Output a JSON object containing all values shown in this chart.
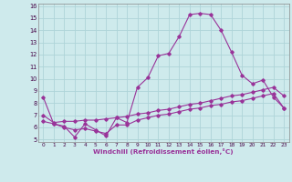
{
  "xlabel": "Windchill (Refroidissement éolien,°C)",
  "bg_color": "#ceeaec",
  "grid_color": "#aed4d8",
  "line_color": "#993399",
  "xlim": [
    -0.5,
    23.5
  ],
  "ylim": [
    4.8,
    16.2
  ],
  "xticks": [
    0,
    1,
    2,
    3,
    4,
    5,
    6,
    7,
    8,
    9,
    10,
    11,
    12,
    13,
    14,
    15,
    16,
    17,
    18,
    19,
    20,
    21,
    22,
    23
  ],
  "yticks": [
    5,
    6,
    7,
    8,
    9,
    10,
    11,
    12,
    13,
    14,
    15,
    16
  ],
  "series1_x": [
    0,
    1,
    2,
    3,
    4,
    5,
    6,
    7,
    8,
    9,
    10,
    11,
    12,
    13,
    14,
    15,
    16,
    17,
    18,
    19,
    20,
    21,
    22,
    23
  ],
  "series1_y": [
    8.5,
    6.3,
    6.1,
    5.2,
    6.3,
    5.8,
    5.3,
    6.8,
    6.4,
    9.3,
    10.1,
    11.9,
    12.1,
    13.5,
    15.3,
    15.4,
    15.3,
    14.0,
    12.2,
    10.3,
    9.6,
    9.9,
    8.5,
    7.6
  ],
  "series2_x": [
    0,
    1,
    2,
    3,
    4,
    5,
    6,
    7,
    8,
    9,
    10,
    11,
    12,
    13,
    14,
    15,
    16,
    17,
    18,
    19,
    20,
    21,
    22,
    23
  ],
  "series2_y": [
    7.0,
    6.4,
    6.5,
    6.5,
    6.6,
    6.6,
    6.7,
    6.8,
    6.9,
    7.1,
    7.2,
    7.4,
    7.5,
    7.7,
    7.9,
    8.0,
    8.2,
    8.4,
    8.6,
    8.7,
    8.9,
    9.1,
    9.3,
    8.6
  ],
  "series3_x": [
    0,
    1,
    2,
    3,
    4,
    5,
    6,
    7,
    8,
    9,
    10,
    11,
    12,
    13,
    14,
    15,
    16,
    17,
    18,
    19,
    20,
    21,
    22,
    23
  ],
  "series3_y": [
    6.5,
    6.3,
    6.0,
    5.8,
    5.9,
    5.7,
    5.5,
    6.2,
    6.2,
    6.6,
    6.8,
    7.0,
    7.1,
    7.3,
    7.5,
    7.6,
    7.8,
    7.9,
    8.1,
    8.2,
    8.4,
    8.6,
    8.8,
    7.6
  ]
}
